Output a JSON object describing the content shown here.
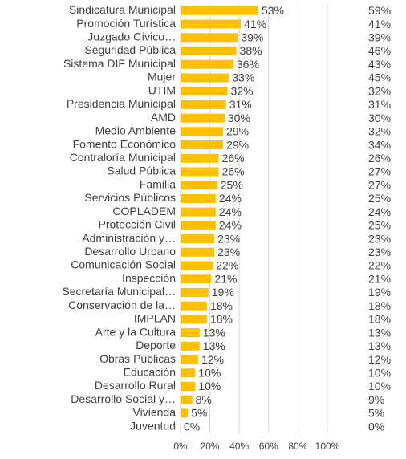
{
  "chart_data": {
    "type": "bar",
    "orientation": "horizontal",
    "categories": [
      "Sindicatura Municipal",
      "Promoción Turística",
      "Juzgado Cívico…",
      "Seguridad Pública",
      "Sistema DIF Municipal",
      "Mujer",
      "UTIM",
      "Presidencia Municipal",
      "AMD",
      "Medio Ambiente",
      "Fomento Económico",
      "Contraloría Municipal",
      "Salud Pública",
      "Familia",
      "Servicios Públicos",
      "COPLADEM",
      "Protección Civil",
      "Administración y…",
      "Desarrollo Urbano",
      "Comunicación Social",
      "Inspección",
      "Secretaría Municipal…",
      "Conservación de la…",
      "IMPLAN",
      "Arte y la Cultura",
      "Deporte",
      "Obras Públicas",
      "Educación",
      "Desarrollo Rural",
      "Desarrollo Social y…",
      "Vivienda",
      "Juventud"
    ],
    "values": [
      53,
      41,
      39,
      38,
      36,
      33,
      32,
      31,
      30,
      29,
      29,
      26,
      26,
      25,
      24,
      24,
      24,
      23,
      23,
      22,
      21,
      19,
      18,
      18,
      13,
      13,
      12,
      10,
      10,
      8,
      5,
      0
    ],
    "value_labels": [
      "53%",
      "41%",
      "39%",
      "38%",
      "36%",
      "33%",
      "32%",
      "31%",
      "30%",
      "29%",
      "29%",
      "26%",
      "26%",
      "25%",
      "24%",
      "24%",
      "24%",
      "23%",
      "23%",
      "22%",
      "21%",
      "19%",
      "18%",
      "18%",
      "13%",
      "13%",
      "12%",
      "10%",
      "10%",
      "8%",
      "5%",
      "0%"
    ],
    "color": "#ffc000",
    "right_column": {
      "values": [
        59,
        41,
        39,
        46,
        43,
        45,
        32,
        31,
        30,
        32,
        34,
        26,
        27,
        27,
        25,
        24,
        25,
        23,
        23,
        22,
        21,
        19,
        18,
        18,
        13,
        13,
        12,
        10,
        10,
        9,
        5,
        0
      ],
      "value_labels": [
        "59%",
        "41%",
        "39%",
        "46%",
        "43%",
        "45%",
        "32%",
        "31%",
        "30%",
        "32%",
        "34%",
        "26%",
        "27%",
        "27%",
        "25%",
        "24%",
        "25%",
        "23%",
        "23%",
        "22%",
        "21%",
        "19%",
        "18%",
        "18%",
        "13%",
        "13%",
        "12%",
        "10%",
        "10%",
        "9%",
        "5%",
        "0%"
      ]
    },
    "xlim": [
      0,
      100
    ],
    "xticks": [
      {
        "value": 0,
        "label": "0%"
      },
      {
        "value": 20,
        "label": "20%"
      },
      {
        "value": 40,
        "label": "40%"
      },
      {
        "value": 60,
        "label": "60%"
      },
      {
        "value": 80,
        "label": "80%"
      },
      {
        "value": 100,
        "label": "100%"
      }
    ],
    "grid": true
  }
}
